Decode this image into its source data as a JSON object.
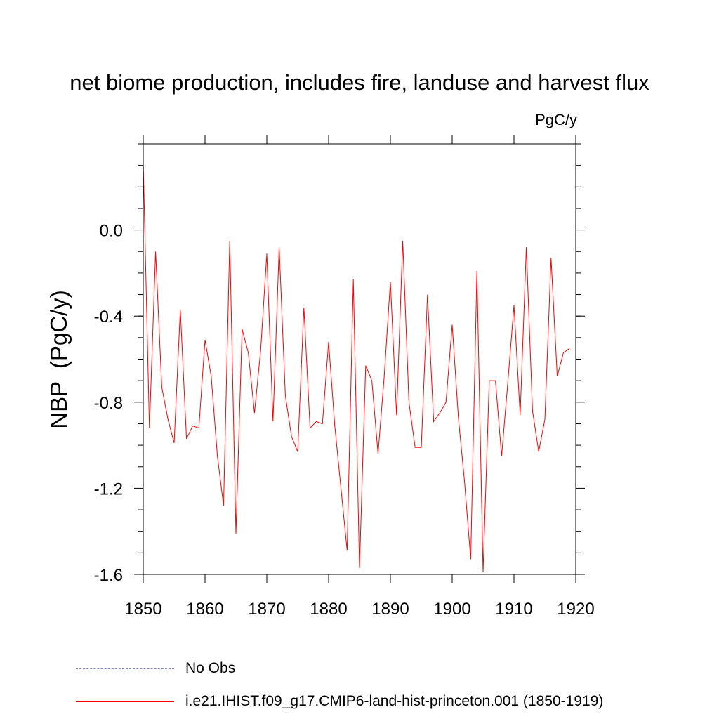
{
  "chart_data": {
    "type": "line",
    "title": "net biome production, includes fire, landuse and harvest flux",
    "units_label": "PgC/y",
    "ylabel": "NBP  (PgC/y)",
    "xlabel": "",
    "xlim": [
      1850,
      1920
    ],
    "ylim": [
      -1.6,
      0.4
    ],
    "xticks": [
      1850,
      1860,
      1870,
      1880,
      1890,
      1900,
      1910,
      1920
    ],
    "yticks": [
      -1.6,
      -1.2,
      -0.8,
      -0.4,
      0.0
    ],
    "ytick_labels": [
      "-1.6",
      "-1.2",
      "-0.8",
      "-0.4",
      "0.0"
    ],
    "grid": false,
    "legend_position": "bottom",
    "series": [
      {
        "name": "No Obs",
        "color": "#8080c0",
        "style": "dashed",
        "x": [],
        "y": []
      },
      {
        "name": "i.e21.IHIST.f09_g17.CMIP6-land-hist-princeton.001 (1850-1919)",
        "color": "#ff0000",
        "style": "solid",
        "x": [
          1850,
          1851,
          1852,
          1853,
          1854,
          1855,
          1856,
          1857,
          1858,
          1859,
          1860,
          1861,
          1862,
          1863,
          1864,
          1865,
          1866,
          1867,
          1868,
          1869,
          1870,
          1871,
          1872,
          1873,
          1874,
          1875,
          1876,
          1877,
          1878,
          1879,
          1880,
          1881,
          1882,
          1883,
          1884,
          1885,
          1886,
          1887,
          1888,
          1889,
          1890,
          1891,
          1892,
          1893,
          1894,
          1895,
          1896,
          1897,
          1898,
          1899,
          1900,
          1901,
          1902,
          1903,
          1904,
          1905,
          1906,
          1907,
          1908,
          1909,
          1910,
          1911,
          1912,
          1913,
          1914,
          1915,
          1916,
          1917,
          1918,
          1919
        ],
        "y": [
          0.31,
          -0.92,
          -0.1,
          -0.73,
          -0.88,
          -0.99,
          -0.37,
          -0.97,
          -0.91,
          -0.92,
          -0.51,
          -0.68,
          -1.05,
          -1.28,
          -0.05,
          -1.41,
          -0.46,
          -0.57,
          -0.85,
          -0.56,
          -0.11,
          -0.89,
          -0.08,
          -0.77,
          -0.96,
          -1.03,
          -0.36,
          -0.92,
          -0.89,
          -0.9,
          -0.52,
          -0.91,
          -1.2,
          -1.49,
          -0.23,
          -1.57,
          -0.63,
          -0.7,
          -1.04,
          -0.68,
          -0.24,
          -0.86,
          -0.05,
          -0.8,
          -1.01,
          -1.01,
          -0.3,
          -0.89,
          -0.85,
          -0.8,
          -0.44,
          -0.87,
          -1.17,
          -1.53,
          -0.19,
          -1.59,
          -0.7,
          -0.7,
          -1.05,
          -0.71,
          -0.35,
          -0.86,
          -0.08,
          -0.84,
          -1.03,
          -0.88,
          -0.13,
          -0.68,
          -0.57,
          -0.55
        ]
      }
    ]
  }
}
